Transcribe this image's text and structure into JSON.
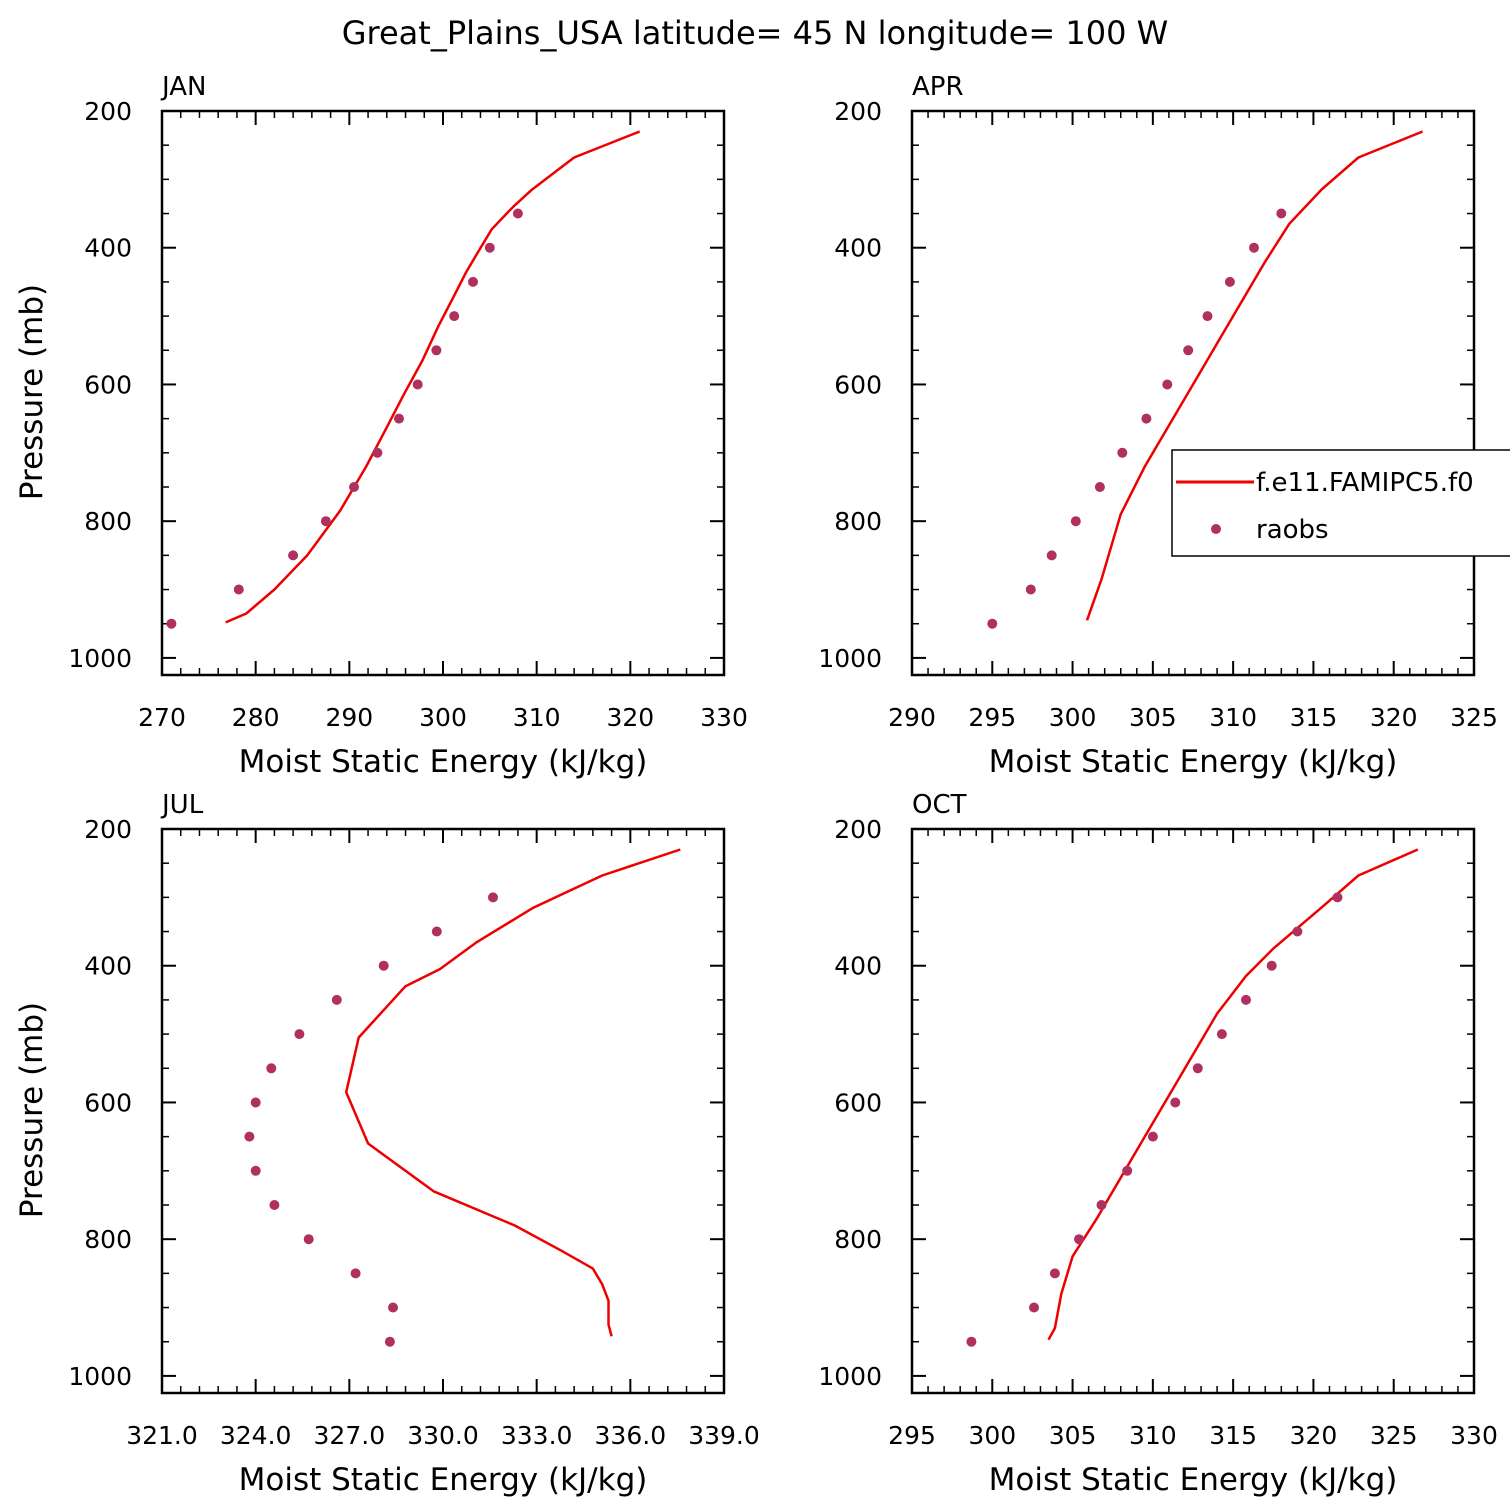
{
  "title": "Great_Plains_USA  latitude= 45 N longitude= 100 W",
  "colors": {
    "model": "#ee0000",
    "obs": "#b03060",
    "axis": "#000000"
  },
  "legend": {
    "panel": 1,
    "entries": [
      {
        "label": "f.e11.FAMIPC5.f0",
        "marker": "line"
      },
      {
        "label": "raobs",
        "marker": "dot"
      }
    ]
  },
  "chart_data": [
    {
      "type": "line",
      "panel_label": "JAN",
      "xlabel": "Moist Static Energy (kJ/kg)",
      "ylabel": "Pressure (mb)",
      "xlim": [
        270,
        330
      ],
      "ylim": [
        1025,
        200
      ],
      "xticks": [
        270,
        280,
        290,
        300,
        310,
        320,
        330
      ],
      "xtick_labels": [
        "270",
        "280",
        "290",
        "300",
        "310",
        "320",
        "330"
      ],
      "yticks": [
        200,
        400,
        600,
        800,
        1000
      ],
      "ytick_labels": [
        "200",
        "400",
        "600",
        "800",
        "1000"
      ],
      "series": [
        {
          "name": "f.e11.FAMIPC5.f0",
          "kind": "line",
          "points": [
            [
              321.0,
              230
            ],
            [
              314.0,
              268
            ],
            [
              309.5,
              315
            ],
            [
              307.5,
              340
            ],
            [
              306.8,
              350
            ],
            [
              305.2,
              373
            ],
            [
              303.8,
              405
            ],
            [
              302.5,
              435
            ],
            [
              301.2,
              470
            ],
            [
              299.5,
              515
            ],
            [
              297.8,
              565
            ],
            [
              295.8,
              615
            ],
            [
              293.8,
              668
            ],
            [
              291.8,
              720
            ],
            [
              289.0,
              785
            ],
            [
              285.5,
              850
            ],
            [
              282.0,
              900
            ],
            [
              279.0,
              935
            ],
            [
              276.8,
              948
            ]
          ]
        },
        {
          "name": "raobs",
          "kind": "scatter",
          "points": [
            [
              308.0,
              350
            ],
            [
              305.0,
              400
            ],
            [
              303.2,
              450
            ],
            [
              301.2,
              500
            ],
            [
              299.3,
              550
            ],
            [
              297.3,
              600
            ],
            [
              295.3,
              650
            ],
            [
              293.0,
              700
            ],
            [
              290.5,
              750
            ],
            [
              287.5,
              800
            ],
            [
              284.0,
              850
            ],
            [
              278.2,
              900
            ],
            [
              271.0,
              950
            ]
          ]
        }
      ]
    },
    {
      "type": "line",
      "panel_label": "APR",
      "xlabel": "Moist Static Energy (kJ/kg)",
      "ylabel": "",
      "xlim": [
        290,
        325
      ],
      "ylim": [
        1025,
        200
      ],
      "xticks": [
        290,
        295,
        300,
        305,
        310,
        315,
        320,
        325
      ],
      "xtick_labels": [
        "290",
        "295",
        "300",
        "305",
        "310",
        "315",
        "320",
        "325"
      ],
      "yticks": [
        200,
        400,
        600,
        800,
        1000
      ],
      "ytick_labels": [
        "200",
        "400",
        "600",
        "800",
        "1000"
      ],
      "series": [
        {
          "name": "f.e11.FAMIPC5.f0",
          "kind": "line",
          "points": [
            [
              321.8,
              230
            ],
            [
              317.8,
              268
            ],
            [
              315.5,
              315
            ],
            [
              313.5,
              365
            ],
            [
              312.0,
              420
            ],
            [
              310.5,
              480
            ],
            [
              309.0,
              540
            ],
            [
              307.5,
              600
            ],
            [
              306.0,
              660
            ],
            [
              304.5,
              720
            ],
            [
              303.0,
              790
            ],
            [
              301.8,
              885
            ],
            [
              300.9,
              945
            ]
          ]
        },
        {
          "name": "raobs",
          "kind": "scatter",
          "points": [
            [
              313.0,
              350
            ],
            [
              311.3,
              400
            ],
            [
              309.8,
              450
            ],
            [
              308.4,
              500
            ],
            [
              307.2,
              550
            ],
            [
              305.9,
              600
            ],
            [
              304.6,
              650
            ],
            [
              303.1,
              700
            ],
            [
              301.7,
              750
            ],
            [
              300.2,
              800
            ],
            [
              298.7,
              850
            ],
            [
              297.4,
              900
            ],
            [
              295.0,
              950
            ]
          ]
        }
      ]
    },
    {
      "type": "line",
      "panel_label": "JUL",
      "xlabel": "Moist Static Energy (kJ/kg)",
      "ylabel": "Pressure (mb)",
      "xlim": [
        321.0,
        339.0
      ],
      "ylim": [
        1025,
        200
      ],
      "xticks": [
        321.0,
        324.0,
        327.0,
        330.0,
        333.0,
        336.0,
        339.0
      ],
      "xtick_labels": [
        "321.0",
        "324.0",
        "327.0",
        "330.0",
        "333.0",
        "336.0",
        "339.0"
      ],
      "yticks": [
        200,
        400,
        600,
        800,
        1000
      ],
      "ytick_labels": [
        "200",
        "400",
        "600",
        "800",
        "1000"
      ],
      "series": [
        {
          "name": "f.e11.FAMIPC5.f0",
          "kind": "line",
          "points": [
            [
              337.6,
              230
            ],
            [
              335.1,
              268
            ],
            [
              332.9,
              315
            ],
            [
              331.1,
              365
            ],
            [
              329.9,
              405
            ],
            [
              328.8,
              430
            ],
            [
              327.3,
              505
            ],
            [
              326.9,
              585
            ],
            [
              327.6,
              660
            ],
            [
              329.7,
              730
            ],
            [
              332.3,
              780
            ],
            [
              333.8,
              817
            ],
            [
              334.8,
              843
            ],
            [
              335.1,
              866
            ],
            [
              335.3,
              890
            ],
            [
              335.3,
              925
            ],
            [
              335.4,
              942
            ]
          ]
        },
        {
          "name": "raobs",
          "kind": "scatter",
          "points": [
            [
              331.6,
              300
            ],
            [
              329.8,
              350
            ],
            [
              328.1,
              400
            ],
            [
              326.6,
              450
            ],
            [
              325.4,
              500
            ],
            [
              324.5,
              550
            ],
            [
              324.0,
              600
            ],
            [
              323.8,
              650
            ],
            [
              324.0,
              700
            ],
            [
              324.6,
              750
            ],
            [
              325.7,
              800
            ],
            [
              327.2,
              850
            ],
            [
              328.4,
              900
            ],
            [
              328.3,
              950
            ]
          ]
        }
      ]
    },
    {
      "type": "line",
      "panel_label": "OCT",
      "xlabel": "Moist Static Energy (kJ/kg)",
      "ylabel": "",
      "xlim": [
        295,
        330
      ],
      "ylim": [
        1025,
        200
      ],
      "xticks": [
        295,
        300,
        305,
        310,
        315,
        320,
        325,
        330
      ],
      "xtick_labels": [
        "295",
        "300",
        "305",
        "310",
        "315",
        "320",
        "325",
        "330"
      ],
      "yticks": [
        200,
        400,
        600,
        800,
        1000
      ],
      "ytick_labels": [
        "200",
        "400",
        "600",
        "800",
        "1000"
      ],
      "series": [
        {
          "name": "f.e11.FAMIPC5.f0",
          "kind": "line",
          "points": [
            [
              326.5,
              230
            ],
            [
              322.8,
              268
            ],
            [
              320.5,
              315
            ],
            [
              319.0,
              345
            ],
            [
              317.5,
              375
            ],
            [
              315.8,
              415
            ],
            [
              314.0,
              470
            ],
            [
              312.5,
              530
            ],
            [
              311.0,
              590
            ],
            [
              309.5,
              650
            ],
            [
              308.0,
              710
            ],
            [
              306.5,
              770
            ],
            [
              305.0,
              825
            ],
            [
              304.3,
              880
            ],
            [
              303.9,
              930
            ],
            [
              303.5,
              947
            ]
          ]
        },
        {
          "name": "raobs",
          "kind": "scatter",
          "points": [
            [
              321.5,
              300
            ],
            [
              319.0,
              350
            ],
            [
              317.4,
              400
            ],
            [
              315.8,
              450
            ],
            [
              314.3,
              500
            ],
            [
              312.8,
              550
            ],
            [
              311.4,
              600
            ],
            [
              310.0,
              650
            ],
            [
              308.4,
              700
            ],
            [
              306.8,
              750
            ],
            [
              305.4,
              800
            ],
            [
              303.9,
              850
            ],
            [
              302.6,
              900
            ],
            [
              298.7,
              950
            ]
          ]
        }
      ]
    }
  ]
}
